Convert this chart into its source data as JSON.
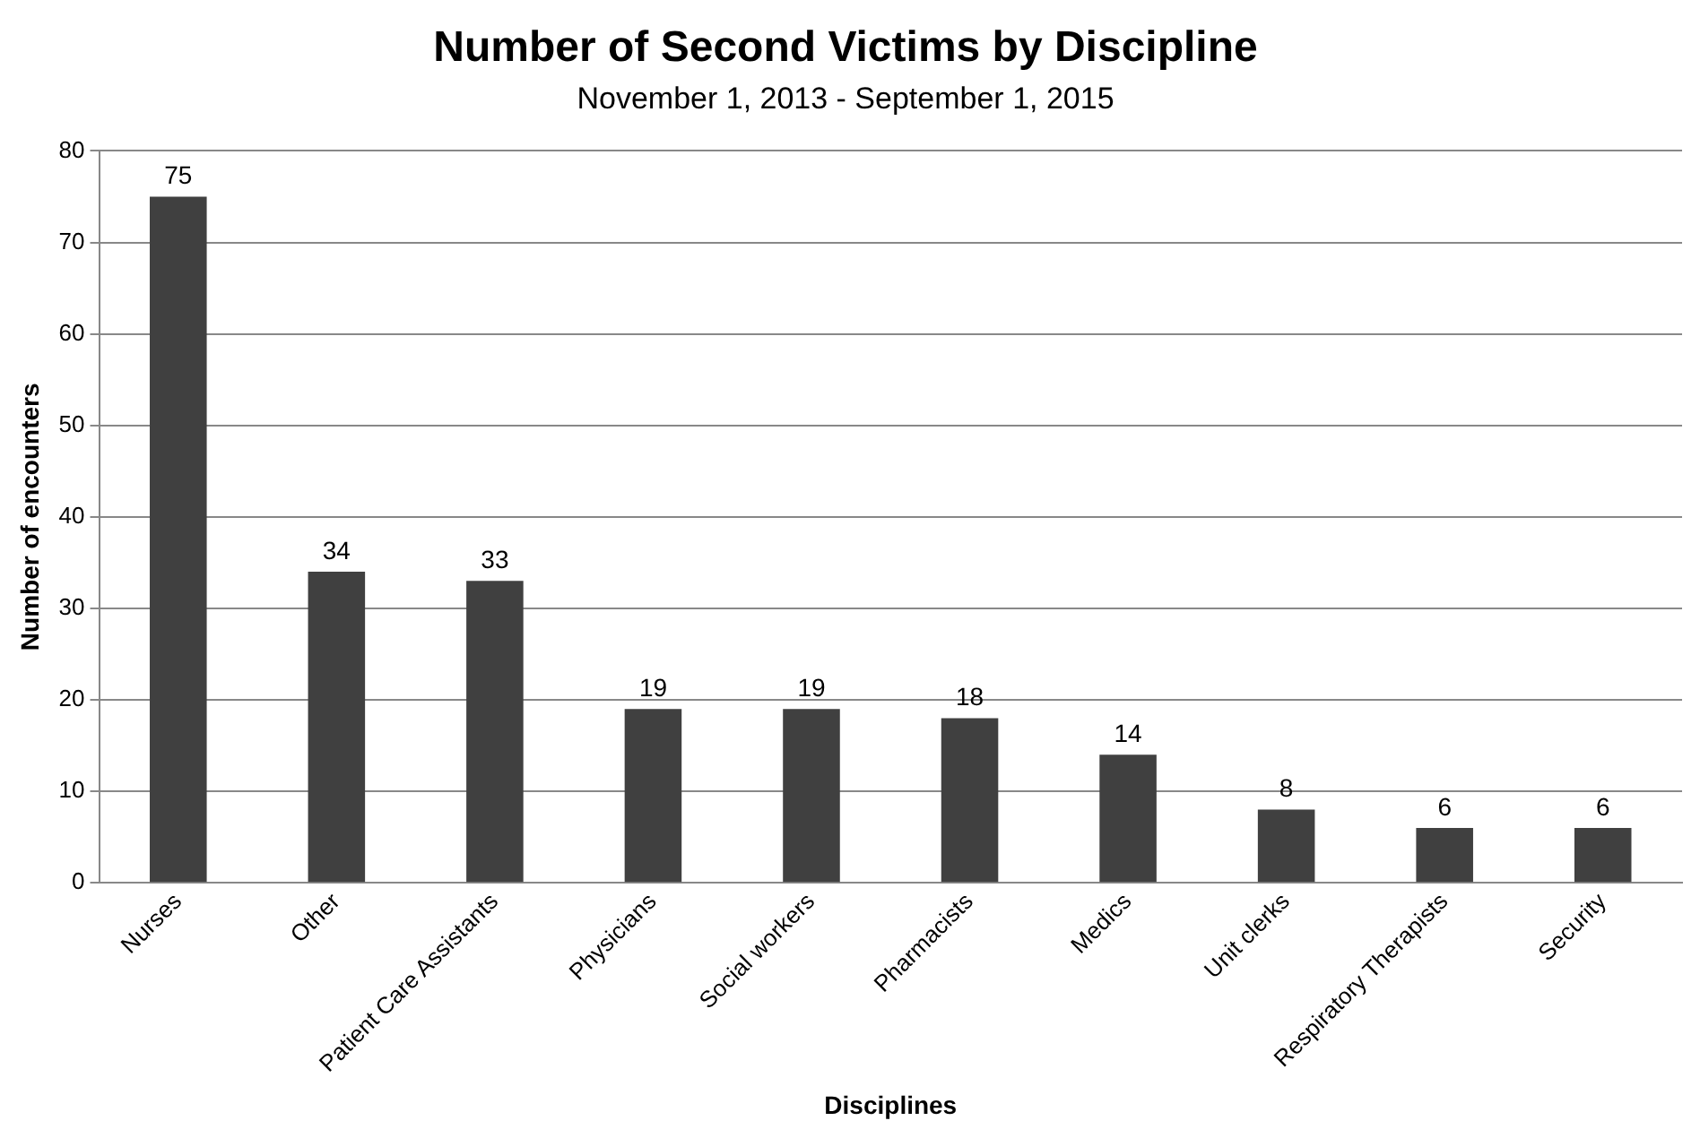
{
  "chart_data": {
    "type": "bar",
    "title": "Number of Second Victims by Discipline",
    "subtitle": "November 1, 2013 - September 1, 2015",
    "xlabel": "Disciplines",
    "ylabel": "Number of encounters",
    "categories": [
      "Nurses",
      "Other",
      "Patient Care Assistants",
      "Physicians",
      "Social workers",
      "Pharmacists",
      "Medics",
      "Unit clerks",
      "Respiratory Therapists",
      "Security"
    ],
    "values": [
      75,
      34,
      33,
      19,
      19,
      18,
      14,
      8,
      6,
      6
    ],
    "color": "#404040",
    "ylim": [
      0,
      80
    ],
    "yticks": [
      0,
      10,
      20,
      30,
      40,
      50,
      60,
      70,
      80
    ],
    "grid": "y",
    "data_labels": true
  }
}
